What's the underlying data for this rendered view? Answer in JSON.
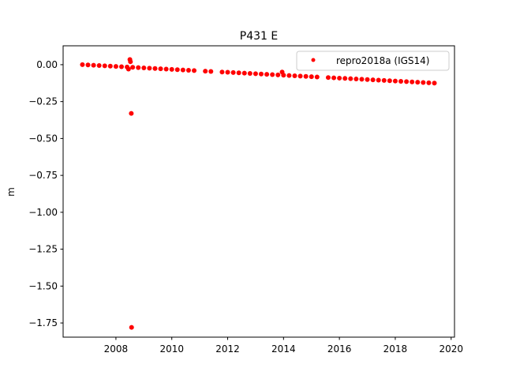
{
  "chart_data": {
    "type": "scatter",
    "title": "P431 E",
    "y_label": "m",
    "legend_position": "upper right",
    "series": [
      {
        "name": "repro2018a (IGS14)",
        "color": "#ff0000",
        "x": [
          2006.8,
          2007.0,
          2007.2,
          2007.4,
          2007.6,
          2007.8,
          2008.0,
          2008.2,
          2008.4,
          2008.6,
          2008.8,
          2009.0,
          2009.2,
          2009.4,
          2009.6,
          2009.8,
          2010.0,
          2010.2,
          2010.4,
          2010.6,
          2010.8,
          2011.2,
          2011.4,
          2011.8,
          2012.0,
          2012.2,
          2012.4,
          2012.6,
          2012.8,
          2013.0,
          2013.2,
          2013.4,
          2013.6,
          2013.8,
          2014.0,
          2014.2,
          2014.4,
          2014.6,
          2014.8,
          2015.0,
          2015.2,
          2015.6,
          2015.8,
          2016.0,
          2016.2,
          2016.4,
          2016.6,
          2016.8,
          2017.0,
          2017.2,
          2017.4,
          2017.6,
          2017.8,
          2018.0,
          2018.2,
          2018.4,
          2018.6,
          2018.8,
          2019.0,
          2019.2,
          2019.4,
          2008.5,
          2008.52,
          2008.55,
          2008.56,
          2013.95,
          2008.45
        ],
        "values": [
          0,
          -0.002,
          -0.004,
          -0.006,
          -0.008,
          -0.01,
          -0.012,
          -0.014,
          -0.016,
          -0.018,
          -0.02,
          -0.022,
          -0.024,
          -0.026,
          -0.028,
          -0.03,
          -0.032,
          -0.034,
          -0.036,
          -0.038,
          -0.04,
          -0.044,
          -0.046,
          -0.05,
          -0.051,
          -0.053,
          -0.055,
          -0.057,
          -0.059,
          -0.061,
          -0.063,
          -0.065,
          -0.067,
          -0.069,
          -0.071,
          -0.073,
          -0.075,
          -0.077,
          -0.079,
          -0.081,
          -0.083,
          -0.087,
          -0.089,
          -0.091,
          -0.093,
          -0.095,
          -0.097,
          -0.099,
          -0.101,
          -0.103,
          -0.105,
          -0.107,
          -0.109,
          -0.111,
          -0.113,
          -0.115,
          -0.117,
          -0.119,
          -0.121,
          -0.123,
          -0.125,
          0.035,
          0.02,
          -0.33,
          -1.78,
          -0.05,
          -0.03
        ]
      }
    ],
    "xlim": [
      2006.11,
      2020.12
    ],
    "xticks": [
      2008,
      2010,
      2012,
      2014,
      2016,
      2018,
      2020
    ],
    "ylim": [
      -1.846,
      0.128
    ],
    "yticks": [
      {
        "value": 0,
        "label": "0.00"
      },
      {
        "value": -0.25,
        "label": "−0.25"
      },
      {
        "value": -0.5,
        "label": "−0.50"
      },
      {
        "value": -0.75,
        "label": "−0.75"
      },
      {
        "value": -1.0,
        "label": "−1.00"
      },
      {
        "value": -1.25,
        "label": "−1.25"
      },
      {
        "value": -1.5,
        "label": "−1.50"
      },
      {
        "value": -1.75,
        "label": "−1.75"
      }
    ],
    "grid": false
  }
}
